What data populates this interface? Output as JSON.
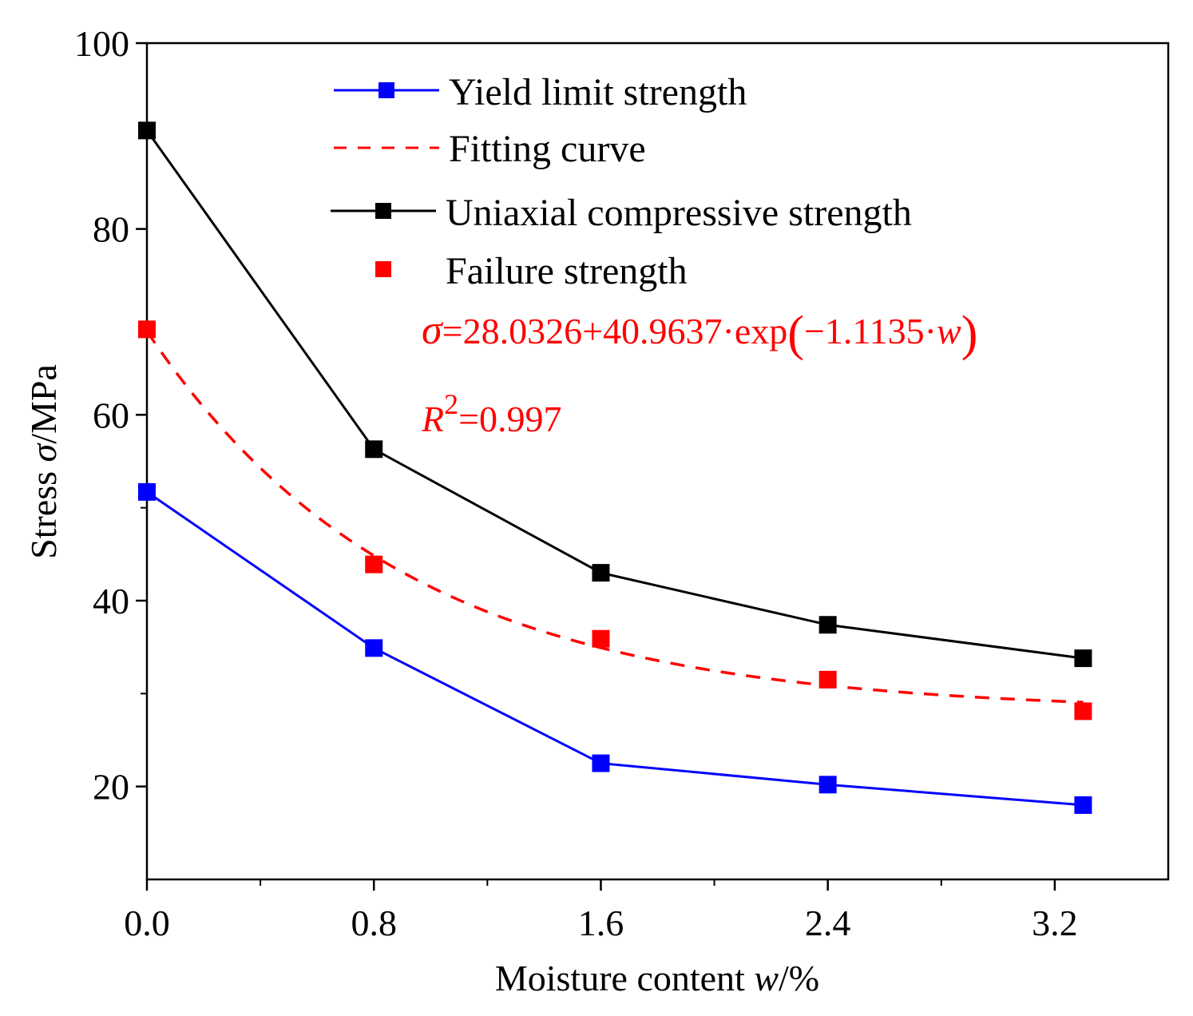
{
  "chart_data": {
    "type": "line",
    "xlabel_text": "Moisture content ",
    "xlabel_var": "w",
    "xlabel_unit": "/%",
    "ylabel_text": "Stress ",
    "ylabel_var": "σ",
    "ylabel_unit": "/MPa",
    "xlim": [
      0,
      3.6
    ],
    "ylim": [
      10,
      100
    ],
    "xticks": [
      0.0,
      0.8,
      1.6,
      2.4,
      3.2
    ],
    "xtick_labels": [
      "0.0",
      "0.8",
      "1.6",
      "2.4",
      "3.2"
    ],
    "xminor": [
      0.4,
      1.2,
      2.0,
      2.8
    ],
    "yticks": [
      20,
      40,
      60,
      80,
      100
    ],
    "ytick_labels": [
      "20",
      "40",
      "60",
      "80",
      "100"
    ],
    "yminor": [
      30,
      50,
      70,
      90
    ],
    "series": [
      {
        "name": "Yield limit strength",
        "color": "#0000ff",
        "line": "solid",
        "marker": "square",
        "x": [
          0,
          0.8,
          1.6,
          2.4,
          3.3
        ],
        "y": [
          51.7,
          34.9,
          22.5,
          20.2,
          18.0
        ]
      },
      {
        "name": "Fitting curve",
        "color": "#ff0000",
        "line": "dashed",
        "marker": "none",
        "formula": "28.0326 + 40.9637*exp(-1.1135*w)",
        "x_range": [
          0,
          3.3
        ]
      },
      {
        "name": "Uniaxial compressive strength",
        "color": "#000000",
        "line": "solid",
        "marker": "square",
        "x": [
          0,
          0.8,
          1.6,
          2.4,
          3.3
        ],
        "y": [
          90.6,
          56.3,
          43.0,
          37.4,
          33.8
        ]
      },
      {
        "name": "Failure strength",
        "color": "#ff0000",
        "line": "none",
        "marker": "square",
        "x": [
          0,
          0.8,
          1.6,
          2.4,
          3.3
        ],
        "y": [
          69.2,
          43.9,
          35.9,
          31.5,
          28.1
        ]
      }
    ],
    "annotations": {
      "equation_var": "σ",
      "equation_rhs": "=28.0326+40.9637·exp",
      "equation_arg": "−1.1135·",
      "equation_arg_var": "w",
      "r2_var": "R",
      "r2_sup": "2",
      "r2_value": "=0.997"
    },
    "legend_position": "top-center"
  }
}
